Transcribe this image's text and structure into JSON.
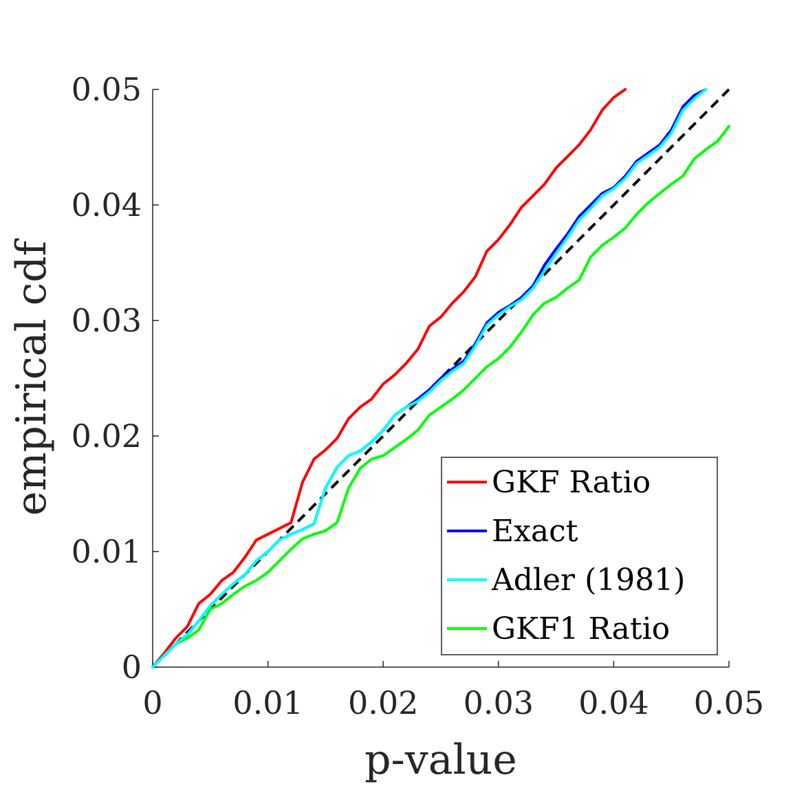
{
  "chart_data": {
    "type": "line",
    "xlabel": "p-value",
    "ylabel": "empirical cdf",
    "xlim": [
      0,
      0.05
    ],
    "ylim": [
      0,
      0.05
    ],
    "xticks": [
      "0",
      "0.01",
      "0.02",
      "0.03",
      "0.04",
      "0.05"
    ],
    "yticks": [
      "0",
      "0.01",
      "0.02",
      "0.03",
      "0.04",
      "0.05"
    ],
    "grid": false,
    "legend_position": "bottom-right",
    "reference_line": {
      "style": "dashed",
      "color": "#000000",
      "x": [
        0,
        0.05
      ],
      "y": [
        0,
        0.05
      ]
    },
    "series": [
      {
        "name": "GKF Ratio",
        "color": "#ff0000",
        "x": [
          0,
          0.001,
          0.002,
          0.003,
          0.004,
          0.005,
          0.006,
          0.007,
          0.008,
          0.009,
          0.01,
          0.011,
          0.012,
          0.013,
          0.014,
          0.015,
          0.016,
          0.017,
          0.018,
          0.019,
          0.02,
          0.021,
          0.022,
          0.023,
          0.024,
          0.025,
          0.026,
          0.027,
          0.028,
          0.029,
          0.03,
          0.031,
          0.032,
          0.033,
          0.034,
          0.035,
          0.036,
          0.037,
          0.038,
          0.039,
          0.04,
          0.041
        ],
        "y": [
          0,
          0.0012,
          0.0025,
          0.0035,
          0.0055,
          0.0063,
          0.0075,
          0.0082,
          0.0095,
          0.011,
          0.0115,
          0.012,
          0.0125,
          0.016,
          0.018,
          0.0188,
          0.0198,
          0.0215,
          0.0225,
          0.0232,
          0.0245,
          0.0253,
          0.0263,
          0.0275,
          0.0295,
          0.0303,
          0.0315,
          0.0325,
          0.0338,
          0.036,
          0.037,
          0.0383,
          0.0398,
          0.0408,
          0.0418,
          0.0432,
          0.0442,
          0.0452,
          0.0465,
          0.0482,
          0.0493,
          0.05
        ]
      },
      {
        "name": "Exact",
        "color": "#0000ff",
        "x": [
          0,
          0.001,
          0.002,
          0.003,
          0.004,
          0.005,
          0.006,
          0.007,
          0.008,
          0.009,
          0.01,
          0.011,
          0.012,
          0.013,
          0.014,
          0.015,
          0.016,
          0.017,
          0.018,
          0.019,
          0.02,
          0.021,
          0.022,
          0.023,
          0.024,
          0.025,
          0.026,
          0.027,
          0.028,
          0.029,
          0.03,
          0.031,
          0.032,
          0.033,
          0.034,
          0.035,
          0.036,
          0.037,
          0.038,
          0.039,
          0.04,
          0.041,
          0.042,
          0.043,
          0.044,
          0.045,
          0.046,
          0.047,
          0.048
        ],
        "y": [
          0,
          0.001,
          0.002,
          0.0028,
          0.004,
          0.0053,
          0.0063,
          0.0072,
          0.008,
          0.0092,
          0.01,
          0.011,
          0.0115,
          0.0119,
          0.0124,
          0.0155,
          0.0173,
          0.0183,
          0.0187,
          0.0195,
          0.0205,
          0.0218,
          0.0225,
          0.0232,
          0.024,
          0.025,
          0.0258,
          0.0265,
          0.028,
          0.0298,
          0.0307,
          0.0313,
          0.032,
          0.033,
          0.0348,
          0.0362,
          0.0375,
          0.039,
          0.04,
          0.041,
          0.0415,
          0.0425,
          0.0438,
          0.0445,
          0.0452,
          0.0465,
          0.0485,
          0.0495,
          0.05
        ]
      },
      {
        "name": "Adler (1981)",
        "color": "#00ffff",
        "x": [
          0,
          0.001,
          0.002,
          0.003,
          0.004,
          0.005,
          0.006,
          0.007,
          0.008,
          0.009,
          0.01,
          0.011,
          0.012,
          0.013,
          0.014,
          0.015,
          0.016,
          0.017,
          0.018,
          0.019,
          0.02,
          0.021,
          0.022,
          0.023,
          0.024,
          0.025,
          0.026,
          0.027,
          0.028,
          0.029,
          0.03,
          0.031,
          0.032,
          0.033,
          0.034,
          0.035,
          0.036,
          0.037,
          0.038,
          0.039,
          0.04,
          0.041,
          0.042,
          0.043,
          0.044,
          0.045,
          0.046,
          0.047,
          0.048
        ],
        "y": [
          0,
          0.001,
          0.002,
          0.0028,
          0.004,
          0.0053,
          0.0063,
          0.0072,
          0.008,
          0.0092,
          0.01,
          0.011,
          0.0115,
          0.0119,
          0.0124,
          0.0155,
          0.0173,
          0.0183,
          0.0187,
          0.0195,
          0.0205,
          0.0218,
          0.0225,
          0.023,
          0.0238,
          0.0248,
          0.0256,
          0.0263,
          0.0278,
          0.0296,
          0.0305,
          0.0312,
          0.0318,
          0.0328,
          0.0343,
          0.0358,
          0.0372,
          0.0387,
          0.0397,
          0.0408,
          0.0414,
          0.0423,
          0.0436,
          0.0443,
          0.045,
          0.0462,
          0.0482,
          0.0492,
          0.05
        ]
      },
      {
        "name": "GKF1 Ratio",
        "color": "#00ff00",
        "x": [
          0,
          0.001,
          0.002,
          0.003,
          0.004,
          0.005,
          0.006,
          0.007,
          0.008,
          0.009,
          0.01,
          0.011,
          0.012,
          0.013,
          0.014,
          0.015,
          0.016,
          0.017,
          0.018,
          0.019,
          0.02,
          0.021,
          0.022,
          0.023,
          0.024,
          0.025,
          0.026,
          0.027,
          0.028,
          0.029,
          0.03,
          0.031,
          0.032,
          0.033,
          0.034,
          0.035,
          0.036,
          0.037,
          0.038,
          0.039,
          0.04,
          0.041,
          0.042,
          0.043,
          0.044,
          0.045,
          0.046,
          0.047,
          0.048,
          0.049,
          0.05
        ],
        "y": [
          0,
          0.001,
          0.002,
          0.0025,
          0.0032,
          0.005,
          0.0055,
          0.0063,
          0.007,
          0.0075,
          0.0082,
          0.0092,
          0.0102,
          0.0111,
          0.0115,
          0.0118,
          0.0125,
          0.0155,
          0.0172,
          0.018,
          0.0183,
          0.019,
          0.0197,
          0.0205,
          0.0218,
          0.0225,
          0.0232,
          0.024,
          0.025,
          0.026,
          0.0267,
          0.0277,
          0.029,
          0.0305,
          0.0315,
          0.032,
          0.0328,
          0.0335,
          0.0355,
          0.0365,
          0.0372,
          0.038,
          0.0392,
          0.0402,
          0.041,
          0.0418,
          0.0425,
          0.044,
          0.0448,
          0.0455,
          0.0468
        ]
      }
    ]
  }
}
